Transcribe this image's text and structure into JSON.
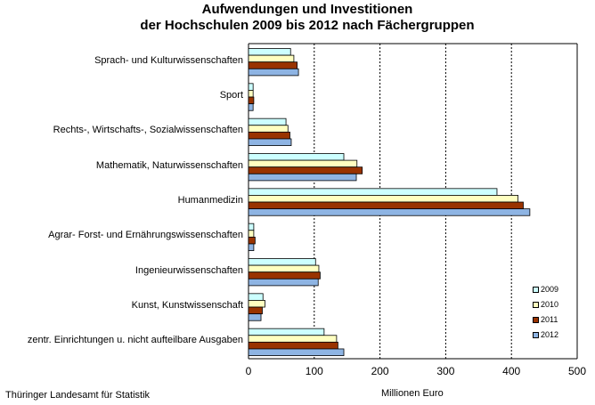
{
  "chart_data": {
    "type": "bar",
    "orientation": "horizontal",
    "title": [
      "Aufwendungen und Investitionen",
      "der Hochschulen 2009 bis 2012 nach Fächergruppen"
    ],
    "xlabel": "Millionen  Euro",
    "ylabel": "",
    "xlim": [
      0,
      500
    ],
    "xticks": [
      "0",
      "100",
      "200",
      "300",
      "400",
      "500"
    ],
    "grid": "vertical dashed",
    "legend_position": "bottom-right",
    "categories": [
      "Sprach- und Kulturwissenschaften",
      "Sport",
      "Rechts-, Wirtschafts-, Sozialwissenschaften",
      "Mathematik,  Naturwissenschaften",
      "Humanmedizin",
      "Agrar- Forst- und Ernährungswissenschaften",
      "Ingenieurwissenschaften",
      "Kunst,  Kunstwissenschaft",
      "zentr. Einrichtungen u. nicht aufteilbare Ausgaben"
    ],
    "series": [
      {
        "name": "2009",
        "color": "#ccffff",
        "values": [
          64,
          7,
          57,
          145,
          378,
          8,
          102,
          22,
          115
        ]
      },
      {
        "name": "2010",
        "color": "#ffffc0",
        "values": [
          69,
          7,
          60,
          165,
          410,
          8,
          107,
          25,
          134
        ]
      },
      {
        "name": "2011",
        "color": "#993300",
        "values": [
          74,
          8,
          63,
          173,
          418,
          10,
          109,
          21,
          136
        ]
      },
      {
        "name": "2012",
        "color": "#8eb4e3",
        "values": [
          76,
          7,
          65,
          164,
          428,
          8,
          106,
          19,
          145
        ]
      }
    ]
  },
  "source": "Thüringer  Landesamt  für Statistik"
}
